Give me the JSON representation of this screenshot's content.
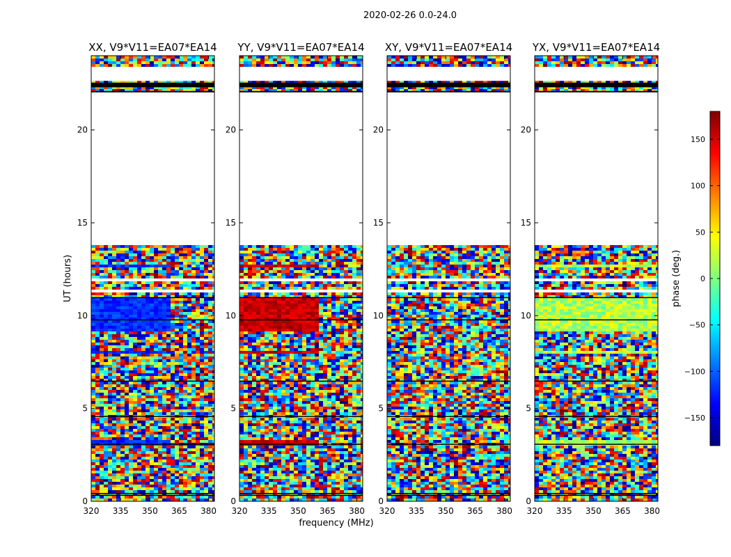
{
  "figure": {
    "suptitle": "2020-02-26 0.0-24.0",
    "xlabel": "frequency (MHz)",
    "ylabel": "UT (hours)"
  },
  "chart_data": {
    "type": "heatmap",
    "title": "2020-02-26 0.0-24.0",
    "xlabel": "frequency (MHz)",
    "ylabel": "UT (hours)",
    "xlim": [
      320,
      383
    ],
    "ylim": [
      0,
      24
    ],
    "xticks": [
      320,
      335,
      350,
      365,
      380
    ],
    "yticks": [
      0,
      5,
      10,
      15,
      20
    ],
    "colormap": "jet",
    "panels": [
      {
        "title": "XX, V9*V11=EA07*EA14",
        "pol": "XX"
      },
      {
        "title": "YY, V9*V11=EA07*EA14",
        "pol": "YY"
      },
      {
        "title": "XY, V9*V11=EA07*EA14",
        "pol": "XY"
      },
      {
        "title": "YX, V9*V11=EA07*EA14",
        "pol": "YX"
      }
    ],
    "flagged_ut_ranges": [
      [
        13.8,
        22.0
      ],
      [
        22.6,
        23.4
      ],
      [
        11.05,
        11.12
      ],
      [
        11.3,
        11.4
      ],
      [
        11.88,
        12.0
      ]
    ],
    "colorbar": {
      "label": "phase (deg.)",
      "range": [
        -180,
        180
      ],
      "ticks": [
        -150,
        -100,
        -50,
        0,
        50,
        100,
        150
      ],
      "tick_labels": [
        "−150",
        "−100",
        "−50",
        "0",
        "50",
        "100",
        "150"
      ]
    }
  }
}
